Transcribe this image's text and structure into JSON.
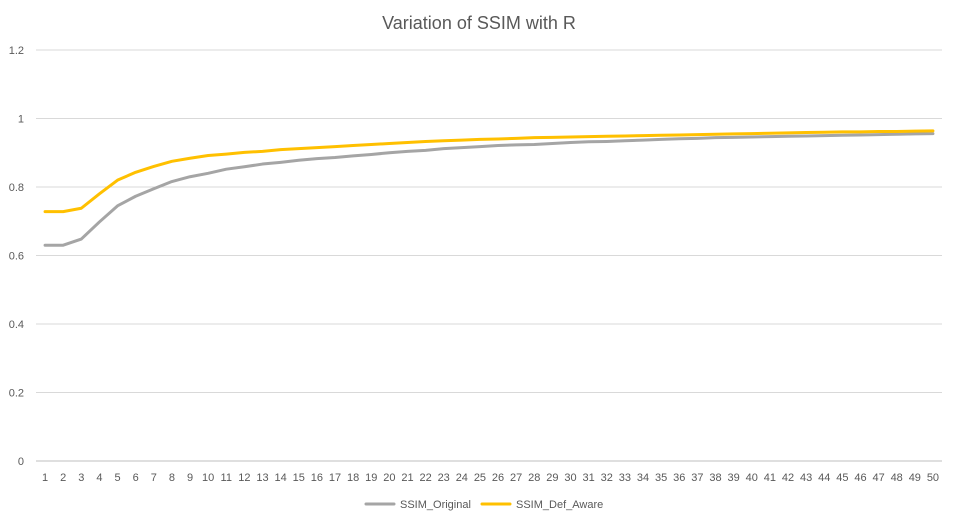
{
  "chart_data": {
    "type": "line",
    "title": "Variation of SSIM with R",
    "xlabel": "",
    "ylabel": "",
    "ylim": [
      0,
      1.2
    ],
    "yticks": [
      "0",
      "0.2",
      "0.4",
      "0.6",
      "0.8",
      "1",
      "1.2"
    ],
    "categories": [
      "1",
      "2",
      "3",
      "4",
      "5",
      "6",
      "7",
      "8",
      "9",
      "10",
      "11",
      "12",
      "13",
      "14",
      "15",
      "16",
      "17",
      "18",
      "19",
      "20",
      "21",
      "22",
      "23",
      "24",
      "25",
      "26",
      "27",
      "28",
      "29",
      "30",
      "31",
      "32",
      "33",
      "34",
      "35",
      "36",
      "37",
      "38",
      "39",
      "40",
      "41",
      "42",
      "43",
      "44",
      "45",
      "46",
      "47",
      "48",
      "49",
      "50"
    ],
    "grid": true,
    "legend": "bottom",
    "series": [
      {
        "name": "SSIM_Original",
        "color": "#a5a5a5",
        "values": [
          0.63,
          0.63,
          0.648,
          0.698,
          0.745,
          0.773,
          0.795,
          0.816,
          0.83,
          0.84,
          0.852,
          0.859,
          0.867,
          0.872,
          0.878,
          0.883,
          0.886,
          0.891,
          0.895,
          0.9,
          0.904,
          0.907,
          0.912,
          0.915,
          0.918,
          0.921,
          0.923,
          0.924,
          0.927,
          0.93,
          0.932,
          0.933,
          0.935,
          0.937,
          0.939,
          0.941,
          0.942,
          0.944,
          0.945,
          0.946,
          0.947,
          0.948,
          0.949,
          0.95,
          0.951,
          0.952,
          0.953,
          0.954,
          0.955,
          0.956
        ]
      },
      {
        "name": "SSIM_Def_Aware",
        "color": "#ffc000",
        "values": [
          0.728,
          0.728,
          0.738,
          0.78,
          0.82,
          0.843,
          0.86,
          0.875,
          0.884,
          0.892,
          0.896,
          0.901,
          0.904,
          0.909,
          0.912,
          0.915,
          0.918,
          0.921,
          0.924,
          0.927,
          0.93,
          0.933,
          0.935,
          0.937,
          0.939,
          0.94,
          0.942,
          0.944,
          0.945,
          0.946,
          0.947,
          0.948,
          0.949,
          0.95,
          0.951,
          0.952,
          0.953,
          0.954,
          0.955,
          0.956,
          0.957,
          0.958,
          0.959,
          0.96,
          0.961,
          0.961,
          0.962,
          0.962,
          0.963,
          0.964
        ]
      }
    ]
  }
}
